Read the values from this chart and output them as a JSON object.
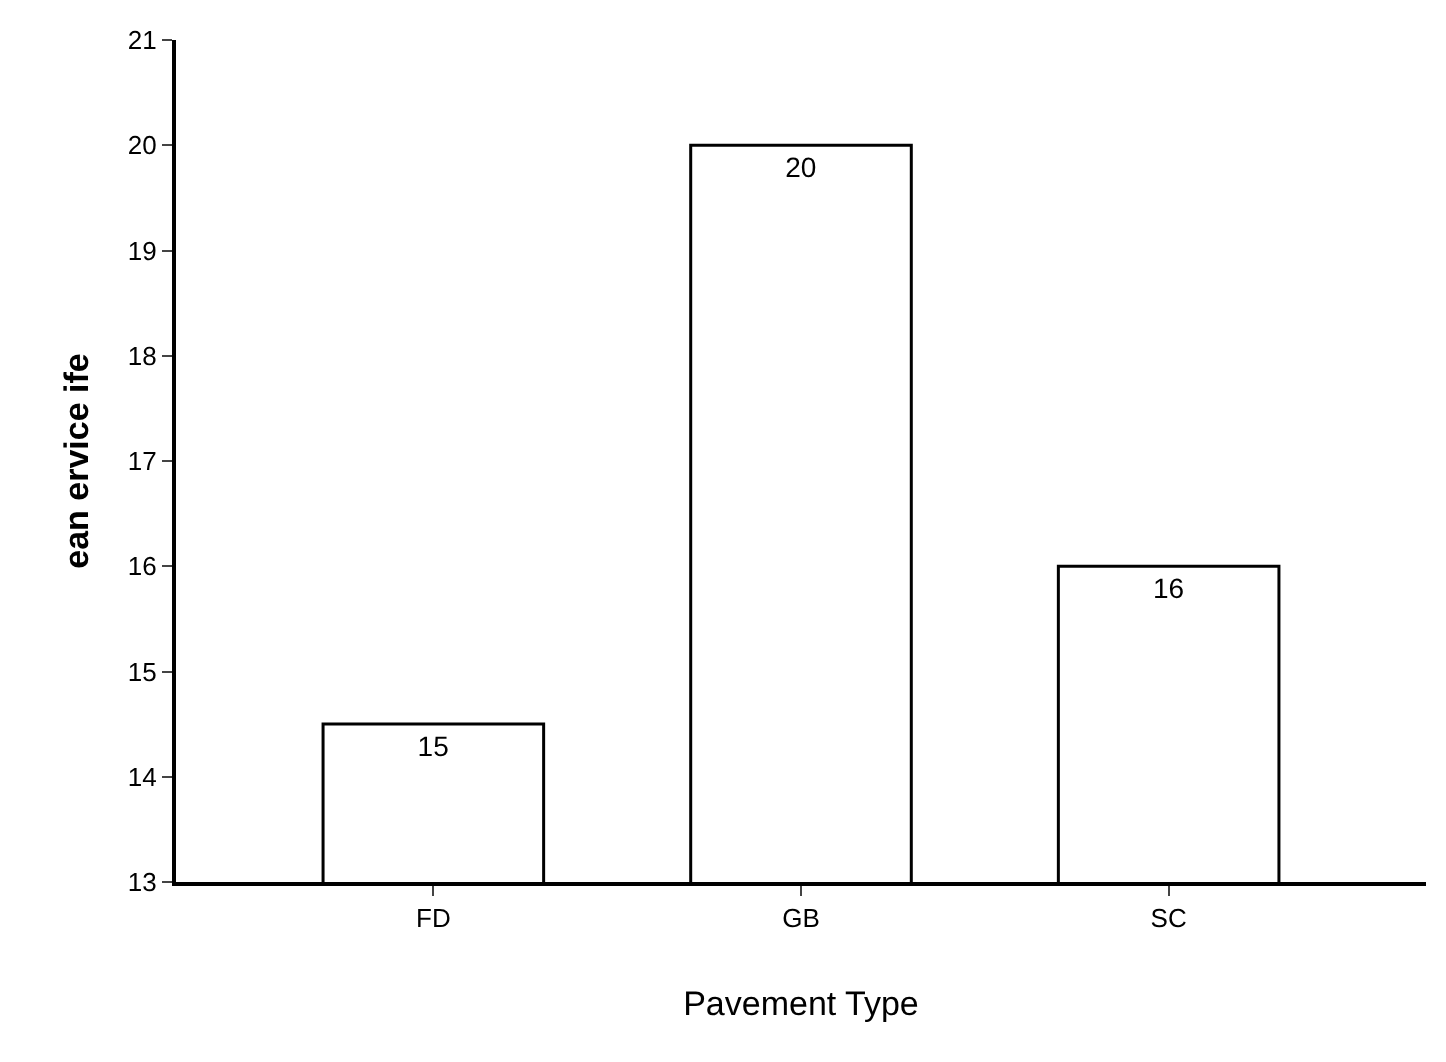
{
  "chart_data": {
    "type": "bar",
    "xlabel": "Pavement Type",
    "ylabel": "ean ervice ife",
    "categories": [
      "FD",
      "GB",
      "SC"
    ],
    "values": [
      14.5,
      20,
      16
    ],
    "value_labels": [
      "15",
      "20",
      "16"
    ],
    "color": "#ffffff",
    "ylim": [
      13,
      21
    ],
    "yticks": [
      13,
      14,
      15,
      16,
      17,
      18,
      19,
      20,
      21
    ]
  }
}
